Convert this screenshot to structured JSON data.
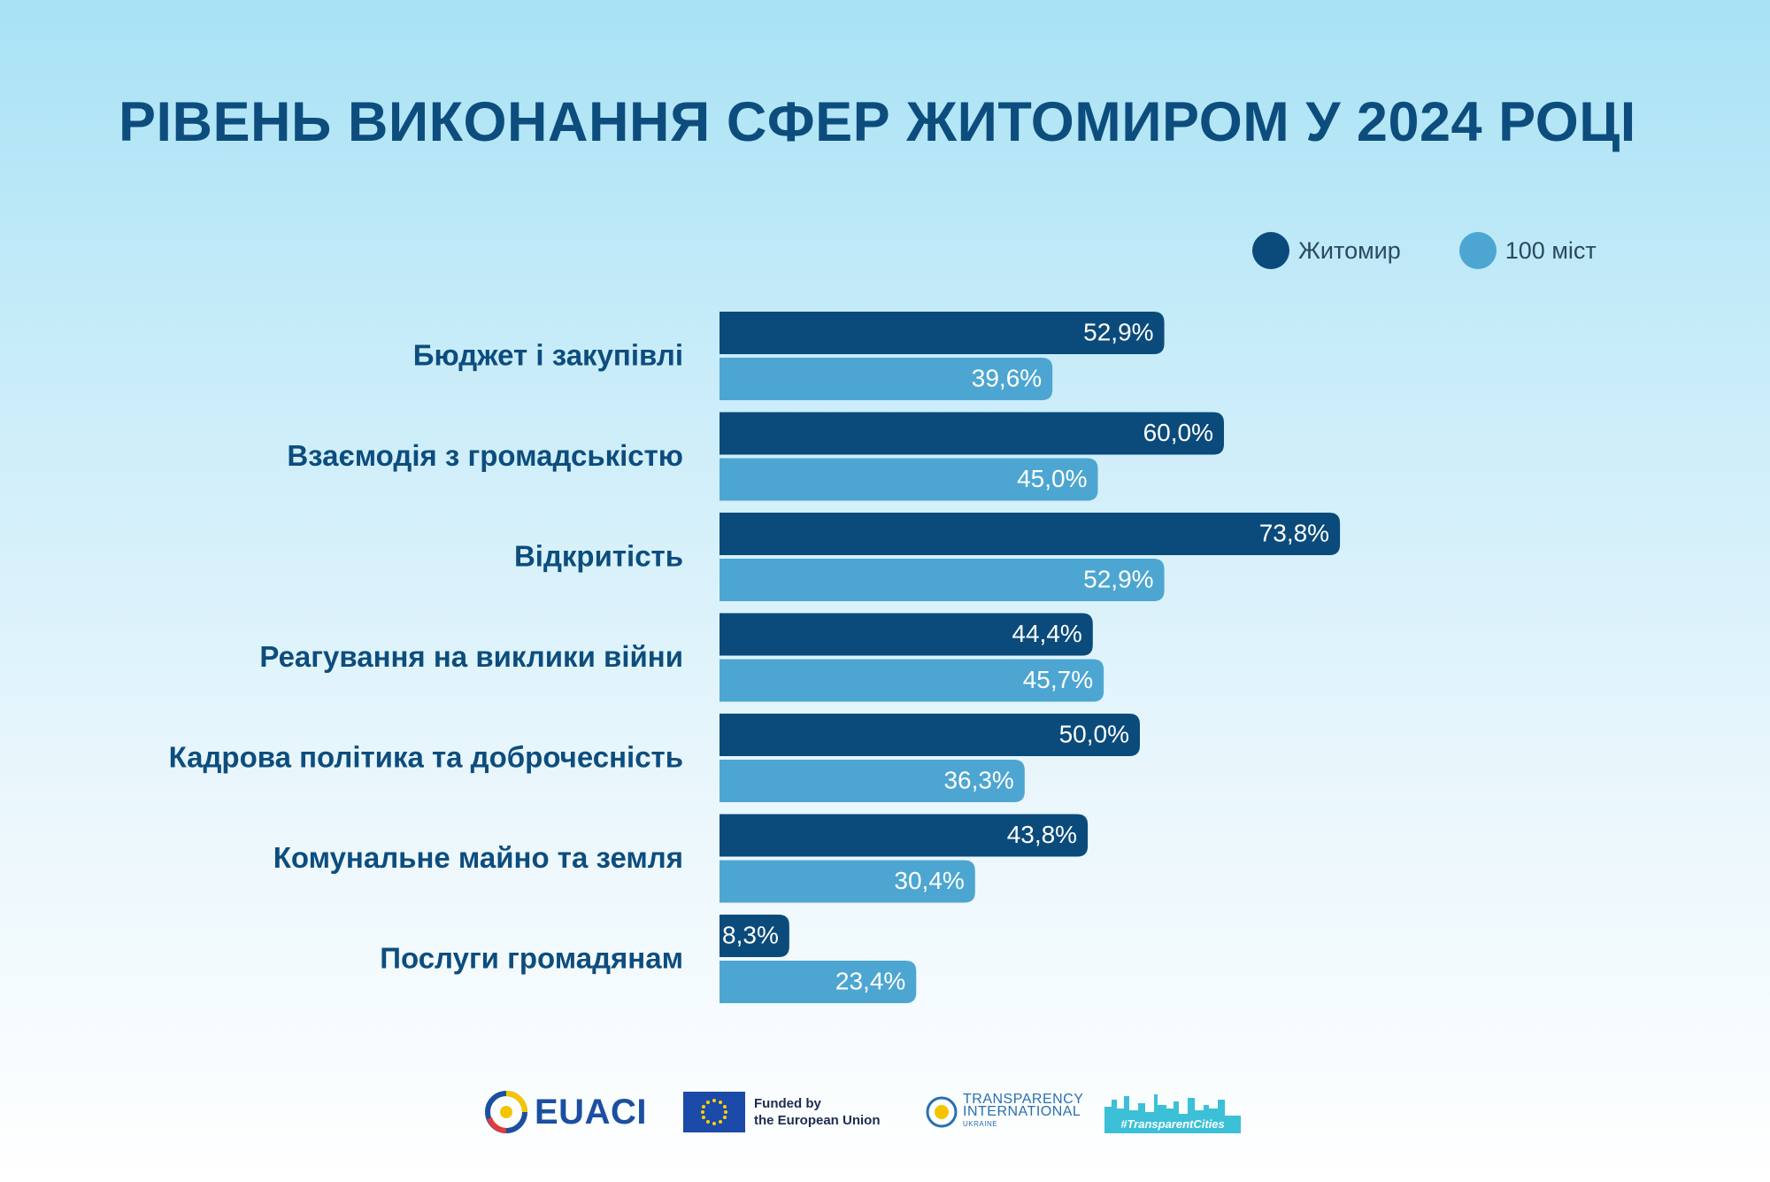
{
  "title": "РІВЕНЬ ВИКОНАННЯ СФЕР ЖИТОМИРОМ У 2024 РОЦІ",
  "legend": [
    {
      "label": "Житомир",
      "color": "#0b4b7c"
    },
    {
      "label": "100 міст",
      "color": "#4da6d2"
    }
  ],
  "chart_data": {
    "type": "bar",
    "orientation": "horizontal",
    "categories": [
      "Бюджет і закупівлі",
      "Взаємодія з громадськістю",
      "Відкритість",
      "Реагування на виклики війни",
      "Кадрова політика та доброчесність",
      "Комунальне майно та земля",
      "Послуги громадянам"
    ],
    "series": [
      {
        "name": "Житомир",
        "color": "#0b4b7c",
        "values": [
          52.9,
          60.0,
          73.8,
          44.4,
          50.0,
          43.8,
          8.3
        ],
        "labels": [
          "52,9%",
          "60,0%",
          "73,8%",
          "44,4%",
          "50,0%",
          "43,8%",
          "8,3%"
        ]
      },
      {
        "name": "100 міст",
        "color": "#4da6d2",
        "values": [
          39.6,
          45.0,
          52.9,
          45.7,
          36.3,
          30.4,
          23.4
        ],
        "labels": [
          "39,6%",
          "45,0%",
          "52,9%",
          "45,7%",
          "36,3%",
          "30,4%",
          "23,4%"
        ]
      }
    ],
    "xlim": [
      0,
      100
    ],
    "unit": "%",
    "legend_position": "top-right"
  },
  "footer": {
    "euaci": "EUACI",
    "eu_funded_line1": "Funded by",
    "eu_funded_line2": "the European Union",
    "ti_line1": "TRANSPARENCY",
    "ti_line2": "INTERNATIONAL",
    "ti_line3": "UKRAINE",
    "tc_tag": "#TransparentCities"
  }
}
